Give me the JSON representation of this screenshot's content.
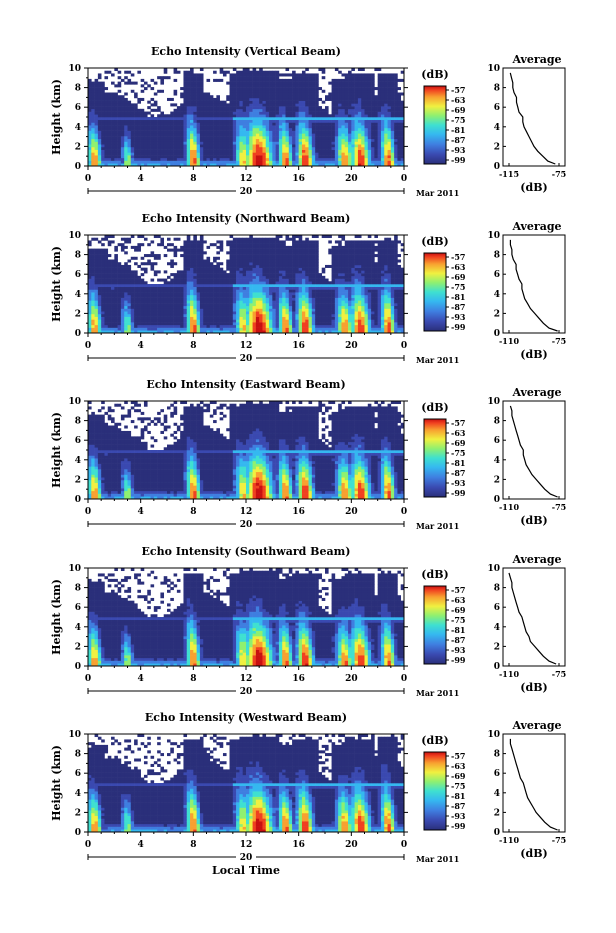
{
  "figure": {
    "time_axis_label": "Local Time",
    "date_day_label": "20",
    "date_month_label": "Mar 2011",
    "colorbar_unit": "(dB)",
    "colorbar_ticks": [
      "-57",
      "-63",
      "-69",
      "-75",
      "-81",
      "-87",
      "-93",
      "-99"
    ],
    "average_title": "Average",
    "average_xlabel": "(dB)"
  },
  "colors": {
    "background": "#3a3f8c",
    "colormap": [
      "#2a2f7a",
      "#3a49b0",
      "#3f7ee0",
      "#35b8f0",
      "#3fe0d0",
      "#8ff070",
      "#f0f040",
      "#f8a030",
      "#f04020",
      "#c81010"
    ]
  },
  "chart_data": [
    {
      "type": "heatmap",
      "title": "Echo Intensity (Vertical Beam)",
      "ylabel": "Height (km)",
      "xlabel": "Local Time",
      "x_ticks": [
        "0",
        "4",
        "8",
        "12",
        "16",
        "20",
        "0"
      ],
      "y_ticks": [
        "0",
        "2",
        "4",
        "6",
        "8",
        "10"
      ],
      "xlim": [
        0,
        24
      ],
      "ylim": [
        0,
        10
      ],
      "color_scale_db": [
        -99,
        -57
      ],
      "average_profile": {
        "x_ticks": [
          "-115",
          "-75"
        ],
        "y_ticks": [
          "0",
          "2",
          "4",
          "6",
          "8",
          "10"
        ],
        "height_km": [
          0.2,
          0.5,
          1,
          1.5,
          2,
          2.5,
          3,
          3.5,
          4,
          4.5,
          5,
          5.5,
          6,
          6.5,
          7,
          7.5,
          8,
          8.5,
          9,
          9.5
        ],
        "db": [
          -78,
          -84,
          -88,
          -92,
          -95,
          -97,
          -99,
          -101,
          -103,
          -104,
          -104,
          -107,
          -108,
          -109,
          -109,
          -111,
          -112,
          -112,
          -113,
          -114
        ]
      }
    },
    {
      "type": "heatmap",
      "title": "Echo Intensity (Northward Beam)",
      "ylabel": "Height (km)",
      "xlabel": "Local Time",
      "x_ticks": [
        "0",
        "4",
        "8",
        "12",
        "16",
        "20",
        "0"
      ],
      "y_ticks": [
        "0",
        "2",
        "4",
        "6",
        "8",
        "10"
      ],
      "xlim": [
        0,
        24
      ],
      "ylim": [
        0,
        10
      ],
      "color_scale_db": [
        -99,
        -57
      ],
      "average_profile": {
        "x_ticks": [
          "-110",
          "-75"
        ],
        "y_ticks": [
          "0",
          "2",
          "4",
          "6",
          "8",
          "10"
        ],
        "height_km": [
          0.2,
          0.5,
          1,
          1.5,
          2,
          2.5,
          3,
          3.5,
          4,
          4.5,
          5,
          5.5,
          6,
          6.5,
          7,
          7.5,
          8,
          8.5,
          9,
          9.5
        ],
        "db": [
          -76,
          -82,
          -86,
          -89,
          -92,
          -95,
          -97,
          -99,
          -100,
          -101,
          -101,
          -103,
          -104,
          -105,
          -105,
          -107,
          -108,
          -108,
          -109,
          -109
        ]
      }
    },
    {
      "type": "heatmap",
      "title": "Echo Intensity (Eastward Beam)",
      "ylabel": "Height (km)",
      "xlabel": "Local Time",
      "x_ticks": [
        "0",
        "4",
        "8",
        "12",
        "16",
        "20",
        "0"
      ],
      "y_ticks": [
        "0",
        "2",
        "4",
        "6",
        "8",
        "10"
      ],
      "xlim": [
        0,
        24
      ],
      "ylim": [
        0,
        10
      ],
      "color_scale_db": [
        -99,
        -57
      ],
      "average_profile": {
        "x_ticks": [
          "-110",
          "-75"
        ],
        "y_ticks": [
          "0",
          "2",
          "4",
          "6",
          "8",
          "10"
        ],
        "height_km": [
          0.2,
          0.5,
          1,
          1.5,
          2,
          2.5,
          3,
          3.5,
          4,
          4.5,
          5,
          5.5,
          6,
          6.5,
          7,
          7.5,
          8,
          8.5,
          9,
          9.5
        ],
        "db": [
          -76,
          -81,
          -85,
          -88,
          -91,
          -94,
          -96,
          -98,
          -99,
          -100,
          -100,
          -102,
          -103,
          -104,
          -105,
          -106,
          -107,
          -108,
          -108,
          -109
        ]
      }
    },
    {
      "type": "heatmap",
      "title": "Echo Intensity (Southward Beam)",
      "ylabel": "Height (km)",
      "xlabel": "Local Time",
      "x_ticks": [
        "0",
        "4",
        "8",
        "12",
        "16",
        "20",
        "0"
      ],
      "y_ticks": [
        "0",
        "2",
        "4",
        "6",
        "8",
        "10"
      ],
      "xlim": [
        0,
        24
      ],
      "ylim": [
        0,
        10
      ],
      "color_scale_db": [
        -99,
        -57
      ],
      "average_profile": {
        "x_ticks": [
          "-110",
          "-75"
        ],
        "y_ticks": [
          "0",
          "2",
          "4",
          "6",
          "8",
          "10"
        ],
        "height_km": [
          0.2,
          0.5,
          1,
          1.5,
          2,
          2.5,
          3,
          3.5,
          4,
          4.5,
          5,
          5.5,
          6,
          6.5,
          7,
          7.5,
          8,
          8.5,
          9,
          9.5
        ],
        "db": [
          -77,
          -82,
          -86,
          -89,
          -92,
          -95,
          -96,
          -98,
          -99,
          -100,
          -101,
          -103,
          -104,
          -105,
          -106,
          -107,
          -108,
          -108,
          -109,
          -110
        ]
      }
    },
    {
      "type": "heatmap",
      "title": "Echo Intensity (Westward Beam)",
      "ylabel": "Height (km)",
      "xlabel": "Local Time",
      "x_ticks": [
        "0",
        "4",
        "8",
        "12",
        "16",
        "20",
        "0"
      ],
      "y_ticks": [
        "0",
        "2",
        "4",
        "6",
        "8",
        "10"
      ],
      "xlim": [
        0,
        24
      ],
      "ylim": [
        0,
        10
      ],
      "color_scale_db": [
        -99,
        -57
      ],
      "average_profile": {
        "x_ticks": [
          "-110",
          "-75"
        ],
        "y_ticks": [
          "0",
          "2",
          "4",
          "6",
          "8",
          "10"
        ],
        "height_km": [
          0.2,
          0.5,
          1,
          1.5,
          2,
          2.5,
          3,
          3.5,
          4,
          4.5,
          5,
          5.5,
          6,
          6.5,
          7,
          7.5,
          8,
          8.5,
          9,
          9.5
        ],
        "db": [
          -76,
          -81,
          -85,
          -88,
          -91,
          -93,
          -95,
          -97,
          -98,
          -99,
          -100,
          -102,
          -103,
          -104,
          -105,
          -106,
          -107,
          -108,
          -109,
          -109
        ]
      }
    }
  ]
}
